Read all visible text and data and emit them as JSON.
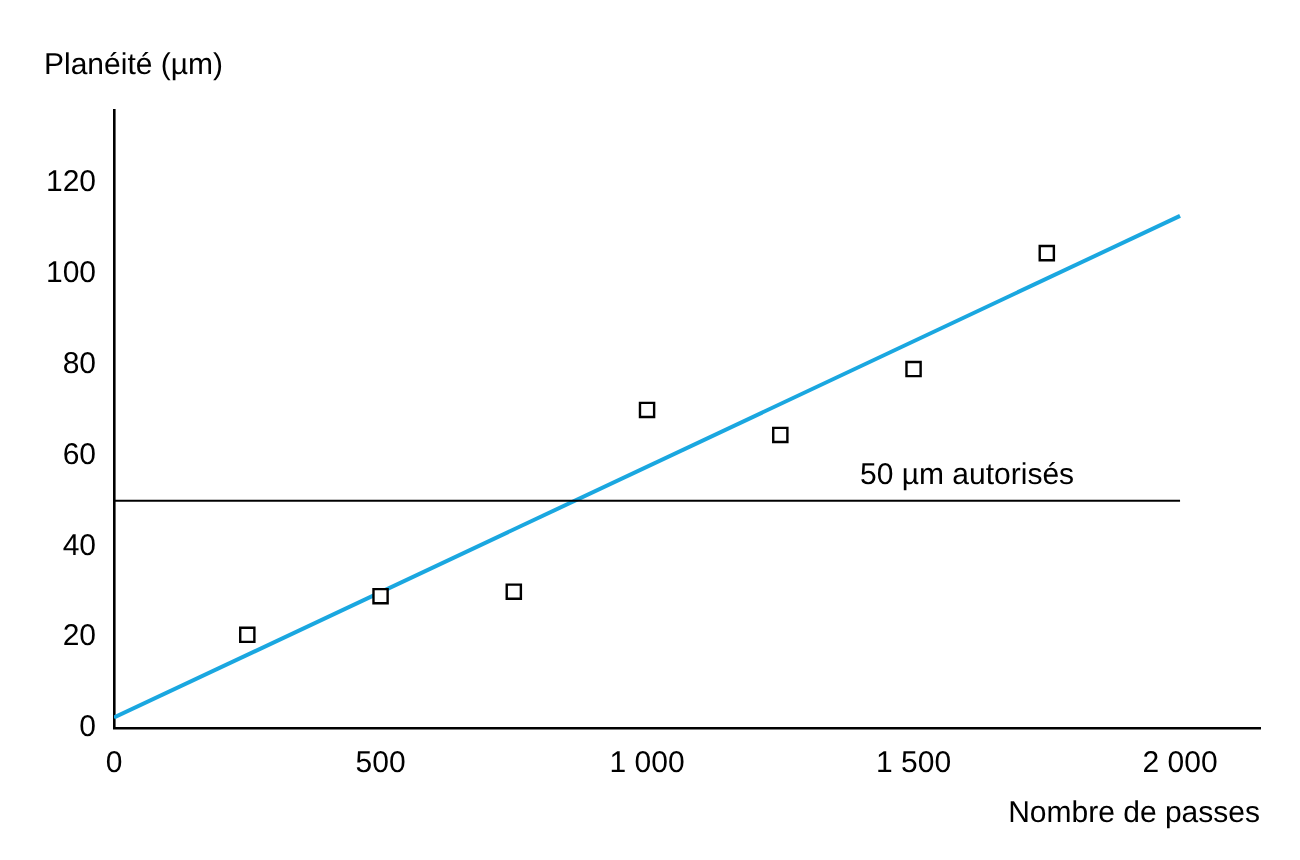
{
  "chart_data": {
    "type": "scatter",
    "xlabel": "Nombre de passes",
    "ylabel": "Planéité (µm)",
    "series": [
      {
        "type": "scatter",
        "color": "#000000",
        "marker": "square",
        "x": [
          250,
          500,
          750,
          1000,
          1250,
          1500,
          1750
        ],
        "values": [
          20.5,
          29,
          30,
          70,
          64.5,
          79,
          104.5
        ]
      },
      {
        "type": "line",
        "color": "#1aa7e0",
        "marker": "none",
        "line_style": "solid",
        "x": [
          0,
          2000
        ],
        "values": [
          2.3,
          112.7
        ]
      }
    ],
    "xlim": [
      0,
      2150
    ],
    "xticks": [
      0,
      500,
      {
        "value": 1000,
        "label": "1 000"
      },
      {
        "value": 1500,
        "label": "1 500"
      },
      {
        "value": 2000,
        "label": "2 000"
      }
    ],
    "ylim": [
      0,
      136
    ],
    "yticks": [
      0,
      20,
      40,
      60,
      80,
      100,
      120
    ],
    "grid": false,
    "legend": false,
    "ref_lines": [
      {
        "axis": "y",
        "value": 50,
        "label": "50 µm autorisés",
        "color": "#000000"
      }
    ]
  }
}
